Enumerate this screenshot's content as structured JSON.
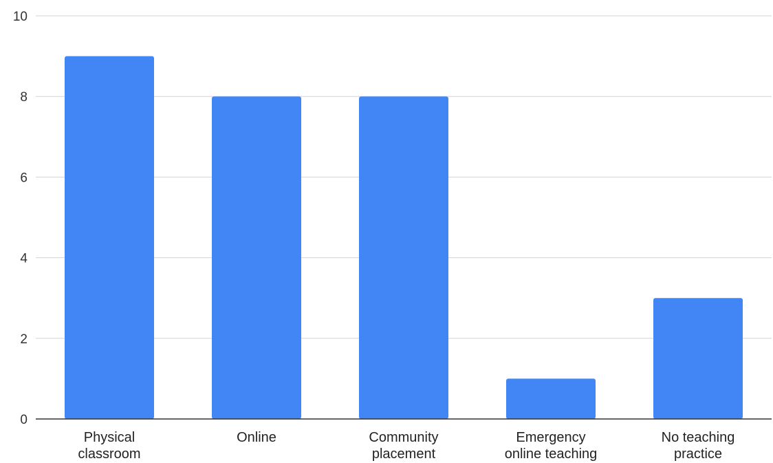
{
  "chart_data": {
    "type": "bar",
    "categories": [
      [
        "Physical",
        "classroom"
      ],
      [
        "Online"
      ],
      [
        "Community",
        "placement"
      ],
      [
        "Emergency",
        "online teaching"
      ],
      [
        "No teaching",
        "practice"
      ]
    ],
    "values": [
      9,
      8,
      8,
      1,
      3
    ],
    "ylim": [
      0,
      10
    ],
    "yticks": [
      0,
      2,
      4,
      6,
      8,
      10
    ],
    "title": "",
    "xlabel": "",
    "ylabel": "",
    "grid": true,
    "bar_color": "#4285f4"
  }
}
